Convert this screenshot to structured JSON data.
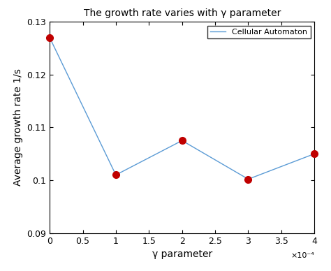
{
  "chart_data": {
    "type": "line",
    "title": "The growth rate varies with γ parameter",
    "x_label": "γ parameter",
    "y_label": "Average growth rate 1/s",
    "x": [
      0,
      0.0001,
      0.0002,
      0.0003,
      0.0004
    ],
    "series": [
      {
        "name": "Cellular Automaton",
        "color": "#5b9bd5",
        "marker": "o",
        "line_style": "solid",
        "values": [
          0.127,
          0.101,
          0.1075,
          0.1002,
          0.105
        ]
      }
    ],
    "xlim": [
      0,
      0.0004
    ],
    "xticks": [
      0,
      {
        "value": 5e-05,
        "label": "0.5"
      },
      {
        "value": 0.0001,
        "label": "1"
      },
      {
        "value": 0.00015,
        "label": "1.5"
      },
      {
        "value": 0.0002,
        "label": "2"
      },
      {
        "value": 0.00025,
        "label": "2.5"
      },
      {
        "value": 0.0003,
        "label": "3"
      },
      {
        "value": 0.00035,
        "label": "3.5"
      },
      {
        "value": 0.0004,
        "label": "4"
      }
    ],
    "x_multiplier": "×10⁻⁴",
    "ylim": [
      0.09,
      0.13
    ],
    "yticks": [
      0.09,
      0.1,
      0.11,
      0.12,
      0.13
    ],
    "grid": false,
    "legend": "upper right"
  }
}
